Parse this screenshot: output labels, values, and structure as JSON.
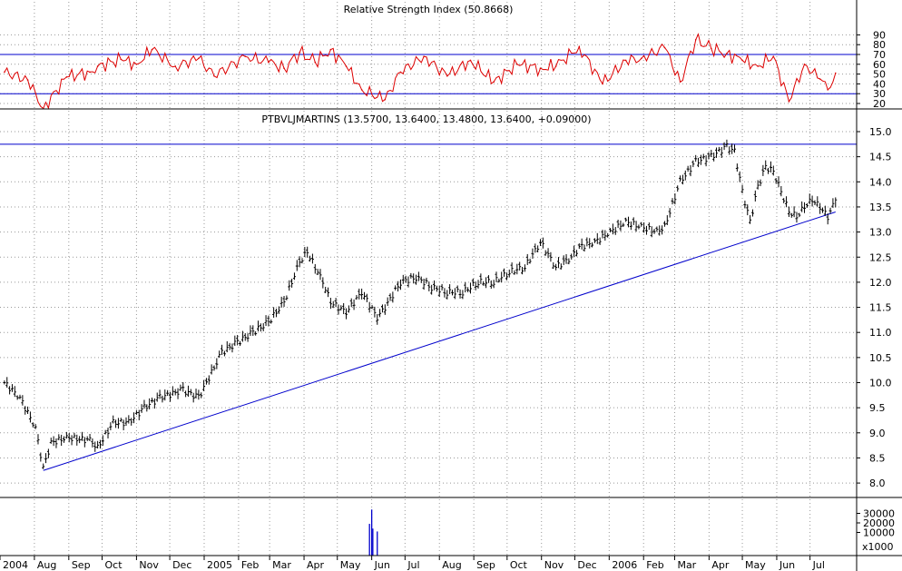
{
  "chart_data": [
    {
      "type": "line",
      "title": "Relative Strength Index (50.8668)",
      "ylim": [
        10,
        95
      ],
      "yticks": [
        20,
        30,
        40,
        50,
        60,
        70,
        80,
        90
      ],
      "reference_lines": [
        70,
        30
      ],
      "grid": true,
      "series": [
        {
          "color": "#dd0000",
          "x": [
            "2004-07-05",
            "2004-07-26",
            "2004-08-09",
            "2004-08-30",
            "2004-09-20",
            "2004-09-27",
            "2004-10-18",
            "2004-11-01",
            "2004-11-15",
            "2004-12-06",
            "2004-12-27",
            "2005-01-10",
            "2005-02-07",
            "2005-02-28",
            "2005-03-14",
            "2005-03-28",
            "2005-04-11",
            "2005-04-25",
            "2005-05-09",
            "2005-05-23",
            "2005-06-13",
            "2005-06-27",
            "2005-07-18",
            "2005-08-08",
            "2005-08-29",
            "2005-09-19",
            "2005-10-10",
            "2005-10-31",
            "2005-11-14",
            "2005-12-05",
            "2005-12-26",
            "2006-01-16",
            "2006-01-30",
            "2006-02-20",
            "2006-03-06",
            "2006-03-20",
            "2006-04-03",
            "2006-04-17",
            "2006-05-01",
            "2006-05-15",
            "2006-05-29",
            "2006-06-12",
            "2006-06-26",
            "2006-07-10",
            "2006-07-17",
            "2006-07-24"
          ],
          "values": [
            52,
            44,
            15,
            47,
            52,
            58,
            65,
            60,
            75,
            58,
            66,
            48,
            68,
            62,
            56,
            72,
            62,
            75,
            58,
            34,
            24,
            52,
            68,
            48,
            64,
            42,
            60,
            56,
            58,
            78,
            40,
            64,
            66,
            77,
            42,
            85,
            76,
            71,
            64,
            58,
            68,
            22,
            60,
            45,
            34,
            51
          ]
        }
      ]
    },
    {
      "type": "bar",
      "subtype": "ohlc",
      "title": "PTBVLJMARTINS (13.5700, 13.6400, 13.4800, 13.6400, +0.09000)",
      "ylim": [
        7.6,
        15.4
      ],
      "yticks": [
        8.0,
        8.5,
        9.0,
        9.5,
        10.0,
        10.5,
        11.0,
        11.5,
        12.0,
        12.5,
        13.0,
        13.5,
        14.0,
        14.5,
        15.0
      ],
      "grid": true,
      "series": [
        {
          "color": "#000000",
          "x": [
            "2004-07-05",
            "2004-07-19",
            "2004-08-02",
            "2004-08-09",
            "2004-08-16",
            "2004-08-30",
            "2004-09-20",
            "2004-09-27",
            "2004-10-11",
            "2004-10-25",
            "2004-11-08",
            "2004-11-22",
            "2004-12-13",
            "2004-12-27",
            "2005-01-17",
            "2005-01-31",
            "2005-02-14",
            "2005-02-28",
            "2005-03-14",
            "2005-03-28",
            "2005-04-04",
            "2005-04-18",
            "2005-04-25",
            "2005-05-09",
            "2005-05-23",
            "2005-06-06",
            "2005-06-13",
            "2005-06-27",
            "2005-07-11",
            "2005-07-25",
            "2005-08-08",
            "2005-08-22",
            "2005-09-05",
            "2005-09-19",
            "2005-10-03",
            "2005-10-17",
            "2005-10-31",
            "2005-11-14",
            "2005-11-28",
            "2005-12-05",
            "2005-12-19",
            "2006-01-02",
            "2006-01-16",
            "2006-01-30",
            "2006-02-13",
            "2006-02-20",
            "2006-03-06",
            "2006-03-20",
            "2006-04-03",
            "2006-04-17",
            "2006-04-24",
            "2006-05-01",
            "2006-05-08",
            "2006-05-15",
            "2006-05-22",
            "2006-05-29",
            "2006-06-05",
            "2006-06-12",
            "2006-06-19",
            "2006-06-26",
            "2006-07-03",
            "2006-07-10",
            "2006-07-17",
            "2006-07-24"
          ],
          "values": [
            10.0,
            9.7,
            9.1,
            8.3,
            8.8,
            8.9,
            8.85,
            8.7,
            9.2,
            9.2,
            9.5,
            9.7,
            9.85,
            9.7,
            10.6,
            10.8,
            11.0,
            11.2,
            11.6,
            12.4,
            12.6,
            12.0,
            11.6,
            11.4,
            11.8,
            11.3,
            11.5,
            12.0,
            12.1,
            11.9,
            11.8,
            11.8,
            12.0,
            12.0,
            12.2,
            12.3,
            12.8,
            12.3,
            12.5,
            12.7,
            12.8,
            13.0,
            13.2,
            13.1,
            13.0,
            13.1,
            14.0,
            14.4,
            14.5,
            14.7,
            14.6,
            13.8,
            13.2,
            13.9,
            14.3,
            14.2,
            13.8,
            13.4,
            13.3,
            13.5,
            13.64,
            13.5,
            13.3,
            13.64
          ]
        }
      ],
      "reference_lines": [
        {
          "type": "horizontal",
          "value": 14.75,
          "color": "#0000cc"
        },
        {
          "type": "trendline",
          "from": [
            "2004-08-09",
            8.25
          ],
          "to": [
            "2006-07-24",
            13.4
          ],
          "color": "#0000cc"
        }
      ]
    },
    {
      "type": "bar",
      "yticks": [
        10000,
        20000,
        30000
      ],
      "ytick_labels": [
        "10000",
        "20000",
        "30000"
      ],
      "units": "x1000",
      "series": [
        {
          "color": "#0000cc",
          "x": [
            "2005-05-30",
            "2005-06-01",
            "2005-06-02",
            "2005-06-06"
          ],
          "values": [
            19000,
            34000,
            14000,
            11000
          ]
        }
      ]
    }
  ],
  "x_axis": {
    "labels": [
      "2004",
      "Aug",
      "Sep",
      "Oct",
      "Nov",
      "Dec",
      "2005",
      "Feb",
      "Mar",
      "Apr",
      "May",
      "Jun",
      "Jul",
      "Aug",
      "Sep",
      "Oct",
      "Nov",
      "Dec",
      "2006",
      "Feb",
      "Mar",
      "Apr",
      "May",
      "Jun",
      "Jul"
    ],
    "dates": [
      "2004-07-01",
      "2004-08-01",
      "2004-09-01",
      "2004-10-01",
      "2004-11-01",
      "2004-12-01",
      "2005-01-01",
      "2005-02-01",
      "2005-03-01",
      "2005-04-01",
      "2005-05-01",
      "2005-06-01",
      "2005-07-01",
      "2005-08-01",
      "2005-09-01",
      "2005-10-01",
      "2005-11-01",
      "2005-12-01",
      "2006-01-01",
      "2006-02-01",
      "2006-03-01",
      "2006-04-01",
      "2006-05-01",
      "2006-06-01",
      "2006-07-01"
    ],
    "range": [
      "2004-07-01",
      "2006-08-12"
    ]
  },
  "colors": {
    "grid": "#999999",
    "reference": "#0000cc",
    "rsi": "#dd0000",
    "price": "#000000",
    "volume": "#0000cc"
  }
}
